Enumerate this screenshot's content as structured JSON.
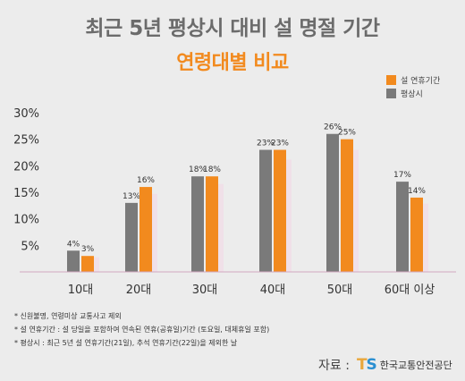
{
  "title": "최근 5년 평상시 대비 설 명절 기간",
  "subtitle": "연령대별 비교",
  "legend": [
    {
      "label": "설 연휴기간",
      "color": "#f28a1e"
    },
    {
      "label": "평상시",
      "color": "#7a7a7a"
    }
  ],
  "chart_data": {
    "type": "bar",
    "title": "최근 5년 평상시 대비 설 명절 기간",
    "subtitle": "연령대별 비교",
    "categories": [
      "10대",
      "20대",
      "30대",
      "40대",
      "50대",
      "60대 이상"
    ],
    "series": [
      {
        "name": "평상시",
        "color": "#7a7a7a",
        "values": [
          4,
          13,
          18,
          23,
          26,
          17
        ],
        "labels": [
          "4%",
          "13%",
          "18%",
          "23%",
          "26%",
          "17%"
        ]
      },
      {
        "name": "설 연휴기간",
        "color": "#f28a1e",
        "values": [
          3,
          16,
          18,
          23,
          25,
          14
        ],
        "labels": [
          "3%",
          "16%",
          "18%",
          "23%",
          "25%",
          "14%"
        ]
      }
    ],
    "y_ticks": [
      5,
      10,
      15,
      20,
      25,
      30
    ],
    "y_tick_labels": [
      "5%",
      "10%",
      "15%",
      "20%",
      "25%",
      "30%"
    ],
    "ylim": [
      0,
      30
    ],
    "legend_position": "top-right",
    "grid": false
  },
  "notes": [
    "* 신원불명, 연령미상 교통사고 제외",
    "* 설 연휴기간 : 설 당일을 포함하여 연속된 연휴(공휴일)기간 (토요일, 대체휴일 포함)",
    "* 평상시 : 최근 5년 설 연휴기간(21일), 추석 연휴기간(22일)을 제외한 날"
  ],
  "source": {
    "label": "자료 :",
    "logo_t": "T",
    "logo_s": "S",
    "org": "한국교통안전공단",
    "logo_colors": {
      "t": "#e9a73c",
      "s": "#2a8fd1"
    }
  }
}
